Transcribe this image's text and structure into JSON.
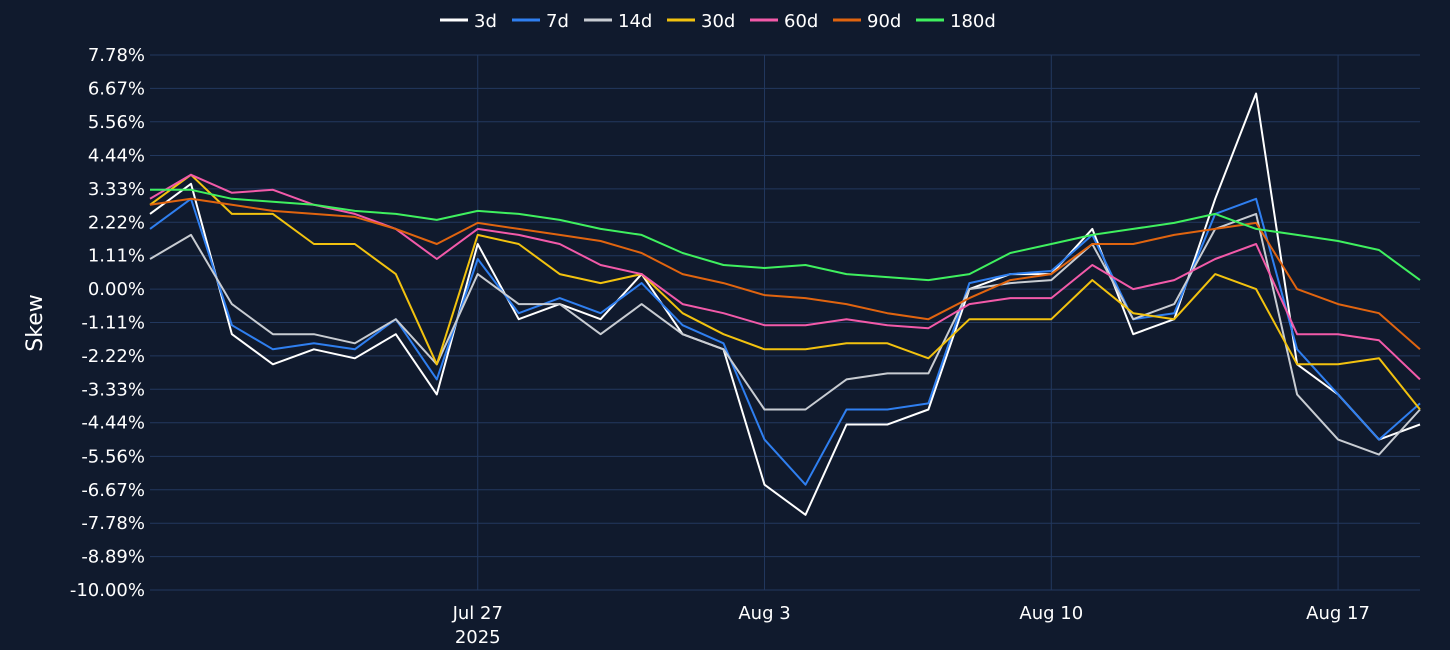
{
  "chart_data": {
    "type": "line",
    "ylabel": "Skew",
    "y_unit": "%",
    "ylim": [
      -10.0,
      7.78
    ],
    "yticks": [
      7.78,
      6.67,
      5.56,
      4.44,
      3.33,
      2.22,
      1.11,
      0.0,
      -1.11,
      -2.22,
      -3.33,
      -4.44,
      -5.56,
      -6.67,
      -7.78,
      -8.89,
      -10.0
    ],
    "ytick_labels": [
      "7.78%",
      "6.67%",
      "5.56%",
      "4.44%",
      "3.33%",
      "2.22%",
      "1.11%",
      "0.00%",
      "-1.11%",
      "-2.22%",
      "-3.33%",
      "-4.44%",
      "-5.56%",
      "-6.67%",
      "-7.78%",
      "-8.89%",
      "-10.00%"
    ],
    "xlim": [
      "2025-07-19T00:00",
      "2025-08-19T00:00"
    ],
    "xticks": [
      {
        "date": "2025-07-27",
        "label": "Jul 27",
        "sublabel": "2025"
      },
      {
        "date": "2025-08-03",
        "label": "Aug 3",
        "sublabel": ""
      },
      {
        "date": "2025-08-10",
        "label": "Aug 10",
        "sublabel": ""
      },
      {
        "date": "2025-08-17",
        "label": "Aug 17",
        "sublabel": ""
      }
    ],
    "grid": true,
    "legend_position": "top-center",
    "background": "#101a2d",
    "grid_color": "#22385e",
    "series": [
      {
        "name": "3d",
        "color": "#ffffff",
        "x": [
          "2025-07-19",
          "2025-07-20",
          "2025-07-21",
          "2025-07-22",
          "2025-07-23",
          "2025-07-24",
          "2025-07-25",
          "2025-07-26",
          "2025-07-27",
          "2025-07-28",
          "2025-07-29",
          "2025-07-30",
          "2025-07-31",
          "2025-08-01",
          "2025-08-02",
          "2025-08-03",
          "2025-08-04",
          "2025-08-05",
          "2025-08-06",
          "2025-08-07",
          "2025-08-08",
          "2025-08-09",
          "2025-08-10",
          "2025-08-11",
          "2025-08-12",
          "2025-08-13",
          "2025-08-14",
          "2025-08-15",
          "2025-08-16",
          "2025-08-17",
          "2025-08-18",
          "2025-08-19"
        ],
        "y": [
          2.5,
          3.5,
          -1.5,
          -2.5,
          -2.0,
          -2.3,
          -1.5,
          -3.5,
          1.5,
          -1.0,
          -0.5,
          -1.0,
          0.5,
          -1.5,
          -2.0,
          -6.5,
          -7.5,
          -4.5,
          -4.5,
          -4.0,
          0.0,
          0.5,
          0.5,
          2.0,
          -1.5,
          -1.0,
          3.0,
          6.5,
          -2.5,
          -3.5,
          -5.0,
          -4.5
        ]
      },
      {
        "name": "7d",
        "color": "#2f7ff0",
        "x": [
          "2025-07-19",
          "2025-07-20",
          "2025-07-21",
          "2025-07-22",
          "2025-07-23",
          "2025-07-24",
          "2025-07-25",
          "2025-07-26",
          "2025-07-27",
          "2025-07-28",
          "2025-07-29",
          "2025-07-30",
          "2025-07-31",
          "2025-08-01",
          "2025-08-02",
          "2025-08-03",
          "2025-08-04",
          "2025-08-05",
          "2025-08-06",
          "2025-08-07",
          "2025-08-08",
          "2025-08-09",
          "2025-08-10",
          "2025-08-11",
          "2025-08-12",
          "2025-08-13",
          "2025-08-14",
          "2025-08-15",
          "2025-08-16",
          "2025-08-17",
          "2025-08-18",
          "2025-08-19"
        ],
        "y": [
          2.0,
          3.0,
          -1.2,
          -2.0,
          -1.8,
          -2.0,
          -1.0,
          -3.0,
          1.0,
          -0.8,
          -0.3,
          -0.8,
          0.2,
          -1.2,
          -1.8,
          -5.0,
          -6.5,
          -4.0,
          -4.0,
          -3.8,
          0.2,
          0.5,
          0.6,
          1.8,
          -1.0,
          -0.8,
          2.5,
          3.0,
          -2.0,
          -3.5,
          -5.0,
          -3.8
        ]
      },
      {
        "name": "14d",
        "color": "#c8ccd2",
        "x": [
          "2025-07-19",
          "2025-07-20",
          "2025-07-21",
          "2025-07-22",
          "2025-07-23",
          "2025-07-24",
          "2025-07-25",
          "2025-07-26",
          "2025-07-27",
          "2025-07-28",
          "2025-07-29",
          "2025-07-30",
          "2025-07-31",
          "2025-08-01",
          "2025-08-02",
          "2025-08-03",
          "2025-08-04",
          "2025-08-05",
          "2025-08-06",
          "2025-08-07",
          "2025-08-08",
          "2025-08-09",
          "2025-08-10",
          "2025-08-11",
          "2025-08-12",
          "2025-08-13",
          "2025-08-14",
          "2025-08-15",
          "2025-08-16",
          "2025-08-17",
          "2025-08-18",
          "2025-08-19"
        ],
        "y": [
          1.0,
          1.8,
          -0.5,
          -1.5,
          -1.5,
          -1.8,
          -1.0,
          -2.5,
          0.5,
          -0.5,
          -0.5,
          -1.5,
          -0.5,
          -1.5,
          -2.0,
          -4.0,
          -4.0,
          -3.0,
          -2.8,
          -2.8,
          0.0,
          0.2,
          0.3,
          1.5,
          -1.0,
          -0.5,
          2.0,
          2.5,
          -3.5,
          -5.0,
          -5.5,
          -4.0
        ]
      },
      {
        "name": "30d",
        "color": "#f2c20f",
        "x": [
          "2025-07-19",
          "2025-07-20",
          "2025-07-21",
          "2025-07-22",
          "2025-07-23",
          "2025-07-24",
          "2025-07-25",
          "2025-07-26",
          "2025-07-27",
          "2025-07-28",
          "2025-07-29",
          "2025-07-30",
          "2025-07-31",
          "2025-08-01",
          "2025-08-02",
          "2025-08-03",
          "2025-08-04",
          "2025-08-05",
          "2025-08-06",
          "2025-08-07",
          "2025-08-08",
          "2025-08-09",
          "2025-08-10",
          "2025-08-11",
          "2025-08-12",
          "2025-08-13",
          "2025-08-14",
          "2025-08-15",
          "2025-08-16",
          "2025-08-17",
          "2025-08-18",
          "2025-08-19"
        ],
        "y": [
          2.8,
          3.8,
          2.5,
          2.5,
          1.5,
          1.5,
          0.5,
          -2.5,
          1.8,
          1.5,
          0.5,
          0.2,
          0.5,
          -0.8,
          -1.5,
          -2.0,
          -2.0,
          -1.8,
          -1.8,
          -2.3,
          -1.0,
          -1.0,
          -1.0,
          0.3,
          -0.8,
          -1.0,
          0.5,
          0.0,
          -2.5,
          -2.5,
          -2.3,
          -4.0
        ]
      },
      {
        "name": "60d",
        "color": "#f25aa9",
        "x": [
          "2025-07-19",
          "2025-07-20",
          "2025-07-21",
          "2025-07-22",
          "2025-07-23",
          "2025-07-24",
          "2025-07-25",
          "2025-07-26",
          "2025-07-27",
          "2025-07-28",
          "2025-07-29",
          "2025-07-30",
          "2025-07-31",
          "2025-08-01",
          "2025-08-02",
          "2025-08-03",
          "2025-08-04",
          "2025-08-05",
          "2025-08-06",
          "2025-08-07",
          "2025-08-08",
          "2025-08-09",
          "2025-08-10",
          "2025-08-11",
          "2025-08-12",
          "2025-08-13",
          "2025-08-14",
          "2025-08-15",
          "2025-08-16",
          "2025-08-17",
          "2025-08-18",
          "2025-08-19"
        ],
        "y": [
          3.0,
          3.8,
          3.2,
          3.3,
          2.8,
          2.5,
          2.0,
          1.0,
          2.0,
          1.8,
          1.5,
          0.8,
          0.5,
          -0.5,
          -0.8,
          -1.2,
          -1.2,
          -1.0,
          -1.2,
          -1.3,
          -0.5,
          -0.3,
          -0.3,
          0.8,
          0.0,
          0.3,
          1.0,
          1.5,
          -1.5,
          -1.5,
          -1.7,
          -3.0
        ]
      },
      {
        "name": "90d",
        "color": "#e0640f",
        "x": [
          "2025-07-19",
          "2025-07-20",
          "2025-07-21",
          "2025-07-22",
          "2025-07-23",
          "2025-07-24",
          "2025-07-25",
          "2025-07-26",
          "2025-07-27",
          "2025-07-28",
          "2025-07-29",
          "2025-07-30",
          "2025-07-31",
          "2025-08-01",
          "2025-08-02",
          "2025-08-03",
          "2025-08-04",
          "2025-08-05",
          "2025-08-06",
          "2025-08-07",
          "2025-08-08",
          "2025-08-09",
          "2025-08-10",
          "2025-08-11",
          "2025-08-12",
          "2025-08-13",
          "2025-08-14",
          "2025-08-15",
          "2025-08-16",
          "2025-08-17",
          "2025-08-18",
          "2025-08-19"
        ],
        "y": [
          2.8,
          3.0,
          2.8,
          2.6,
          2.5,
          2.4,
          2.0,
          1.5,
          2.2,
          2.0,
          1.8,
          1.6,
          1.2,
          0.5,
          0.2,
          -0.2,
          -0.3,
          -0.5,
          -0.8,
          -1.0,
          -0.3,
          0.3,
          0.5,
          1.5,
          1.5,
          1.8,
          2.0,
          2.2,
          0.0,
          -0.5,
          -0.8,
          -2.0
        ]
      },
      {
        "name": "180d",
        "color": "#3ff05f",
        "x": [
          "2025-07-19",
          "2025-07-20",
          "2025-07-21",
          "2025-07-22",
          "2025-07-23",
          "2025-07-24",
          "2025-07-25",
          "2025-07-26",
          "2025-07-27",
          "2025-07-28",
          "2025-07-29",
          "2025-07-30",
          "2025-07-31",
          "2025-08-01",
          "2025-08-02",
          "2025-08-03",
          "2025-08-04",
          "2025-08-05",
          "2025-08-06",
          "2025-08-07",
          "2025-08-08",
          "2025-08-09",
          "2025-08-10",
          "2025-08-11",
          "2025-08-12",
          "2025-08-13",
          "2025-08-14",
          "2025-08-15",
          "2025-08-16",
          "2025-08-17",
          "2025-08-18",
          "2025-08-19"
        ],
        "y": [
          3.3,
          3.3,
          3.0,
          2.9,
          2.8,
          2.6,
          2.5,
          2.3,
          2.6,
          2.5,
          2.3,
          2.0,
          1.8,
          1.2,
          0.8,
          0.7,
          0.8,
          0.5,
          0.4,
          0.3,
          0.5,
          1.2,
          1.5,
          1.8,
          2.0,
          2.2,
          2.5,
          2.0,
          1.8,
          1.6,
          1.3,
          0.3
        ]
      }
    ]
  }
}
